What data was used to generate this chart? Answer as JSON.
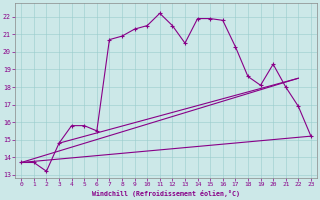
{
  "xlabel": "Windchill (Refroidissement éolien,°C)",
  "xlim": [
    -0.5,
    23.5
  ],
  "ylim": [
    12.8,
    22.8
  ],
  "yticks": [
    13,
    14,
    15,
    16,
    17,
    18,
    19,
    20,
    21,
    22
  ],
  "xticks": [
    0,
    1,
    2,
    3,
    4,
    5,
    6,
    7,
    8,
    9,
    10,
    11,
    12,
    13,
    14,
    15,
    16,
    17,
    18,
    19,
    20,
    21,
    22,
    23
  ],
  "bg_color": "#cce8e8",
  "line_color": "#880088",
  "line1_x": [
    0,
    1,
    2,
    3,
    4,
    5,
    6,
    7,
    8,
    9,
    10,
    11,
    12,
    13,
    14,
    15,
    16,
    17,
    18,
    19,
    20,
    21,
    22,
    23
  ],
  "line1_y": [
    13.7,
    13.7,
    13.2,
    14.8,
    15.8,
    15.8,
    15.5,
    20.7,
    20.9,
    21.3,
    21.5,
    22.2,
    21.5,
    20.5,
    21.9,
    21.9,
    21.8,
    20.3,
    18.6,
    18.1,
    19.3,
    18.0,
    16.9,
    15.2
  ],
  "line2_x": [
    0,
    23
  ],
  "line2_y": [
    13.7,
    15.2
  ],
  "line3_x": [
    0,
    22
  ],
  "line3_y": [
    13.7,
    18.5
  ],
  "line4_x": [
    3,
    22
  ],
  "line4_y": [
    14.8,
    18.5
  ]
}
